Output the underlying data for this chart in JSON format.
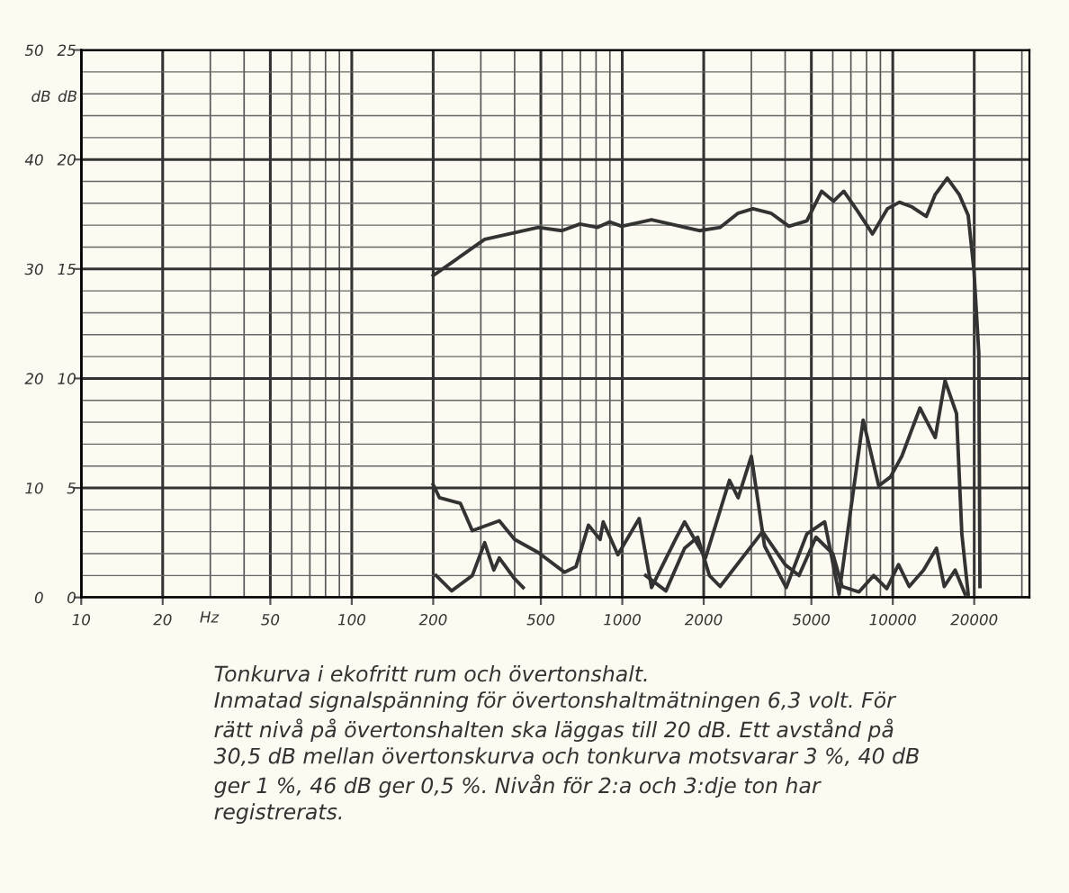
{
  "chart_data": {
    "type": "line",
    "xlabel": "Hz",
    "ylabel": "dB",
    "y2label": "dB",
    "y2lim": [
      0,
      25
    ],
    "y2ticks": [
      0,
      5,
      10,
      15,
      20,
      25
    ],
    "log": "x",
    "grid": true,
    "marker": "none",
    "line_style": "solid",
    "xlim": [
      10,
      32000
    ],
    "xticks": [
      10,
      20,
      50,
      100,
      200,
      500,
      1000,
      2000,
      5000,
      10000,
      20000
    ],
    "ylim": [
      0,
      50
    ],
    "yticks": [
      0,
      10,
      20,
      30,
      40,
      50
    ],
    "series": [
      {
        "color": "#333333",
        "x": [
          200,
          310,
          398,
          489,
          598,
          697,
          811,
          899,
          995,
          1283,
          1573,
          1928,
          2303,
          2681,
          3043,
          3545,
          4130,
          4811,
          5460,
          6041,
          6590,
          7405,
          8415,
          9550,
          10580,
          11700,
          13300,
          14350,
          15900,
          17600,
          19000,
          19950,
          20800,
          21000
        ],
        "values": [
          29.4,
          32.7,
          33.3,
          33.8,
          33.5,
          34.1,
          33.8,
          34.3,
          33.9,
          34.5,
          34.0,
          33.5,
          33.8,
          35.1,
          35.5,
          35.1,
          33.9,
          34.4,
          37.1,
          36.2,
          37.1,
          35.3,
          33.2,
          35.5,
          36.1,
          35.7,
          34.8,
          36.8,
          38.3,
          36.8,
          34.9,
          29.9,
          22.3,
          1.0
        ]
      },
      {
        "color": "#333333",
        "x": [
          200,
          211,
          252,
          279,
          351,
          400,
          489,
          611,
          674,
          750,
          828,
          850,
          963,
          1155,
          1283,
          1573,
          1700,
          2030,
          2490,
          2681,
          3000,
          3357,
          4035,
          4811,
          5600,
          6330,
          7770,
          8870,
          9800,
          10800,
          12600,
          14350,
          15600,
          17200,
          18000,
          19000
        ],
        "values": [
          10.3,
          9.1,
          8.6,
          6.1,
          7.0,
          5.3,
          4.1,
          2.3,
          2.8,
          6.6,
          5.3,
          6.9,
          3.9,
          7.2,
          0.9,
          5.3,
          6.9,
          3.6,
          10.7,
          9.1,
          12.9,
          4.7,
          0.9,
          5.8,
          6.9,
          0.3,
          16.2,
          10.2,
          11.0,
          12.9,
          17.3,
          14.6,
          19.8,
          16.8,
          5.8,
          0.3
        ]
      },
      {
        "color": "#333333",
        "x": [
          205,
          234,
          279,
          310,
          335,
          351,
          400,
          430,
          1040,
          1220,
          1450,
          1700,
          1900,
          2100,
          2300,
          3300,
          4000,
          4500,
          5200,
          6000,
          6500,
          7500,
          8500,
          9500,
          10500,
          11500,
          13000,
          14500,
          15500,
          17000,
          18500
        ],
        "values": [
          2.0,
          0.6,
          2.0,
          5.0,
          2.5,
          3.6,
          1.7,
          0.9,
          null,
          2.0,
          0.6,
          4.5,
          5.5,
          2.0,
          1.0,
          6.0,
          3.0,
          2.0,
          5.5,
          4.0,
          1.0,
          0.5,
          2.0,
          0.8,
          3.0,
          1.0,
          2.5,
          4.5,
          1.0,
          2.5,
          0.3
        ]
      }
    ],
    "annotations": [
      "Tonkurva i ekofritt rum och övertonshalt.\nInmatad signalspänning för övertonshaltmätningen 6,3 volt. För\nrätt nivå på övertonshalten ska läggas till 20 dB. Ett avstånd på\n30,5 dB mellan övertonskurva och tonkurva motsvarar 3 %, 40 dB\nger 1 %, 46 dB ger 0,5 %. Nivån för 2:a och 3:dje ton har\nregistrerats."
    ]
  }
}
